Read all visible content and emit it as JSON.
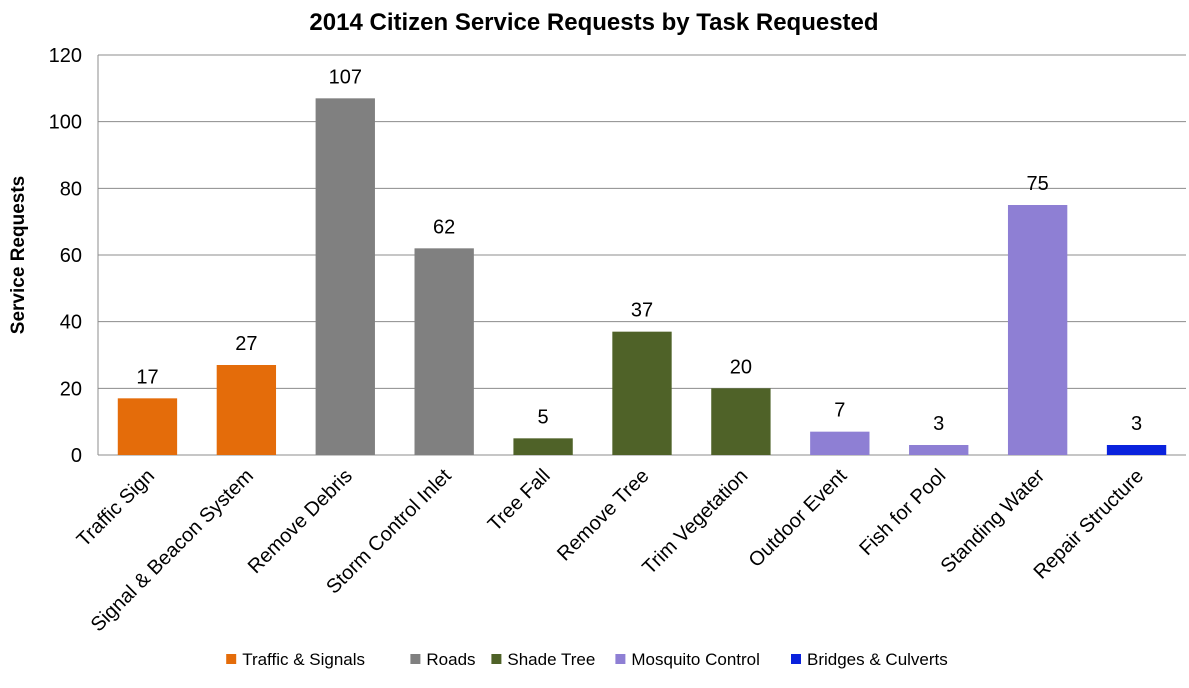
{
  "chart_data": {
    "type": "bar",
    "title": "2014 Citizen Service Requests by Task Requested",
    "xlabel": "",
    "ylabel": "Service Requests",
    "ylim": [
      0,
      120
    ],
    "yticks": [
      0,
      20,
      40,
      60,
      80,
      100,
      120
    ],
    "grid": true,
    "legend_position": "bottom",
    "categories": [
      "Traffic Sign",
      "Signal & Beacon System",
      "Remove Debris",
      "Storm Control Inlet",
      "Tree Fall",
      "Remove Tree",
      "Trim Vegetation",
      "Outdoor Event",
      "Fish for Pool",
      "Standing Water",
      "Repair Structure"
    ],
    "values": [
      17,
      27,
      107,
      62,
      5,
      37,
      20,
      7,
      3,
      75,
      3
    ],
    "bar_groups": [
      "Traffic & Signals",
      "Traffic & Signals",
      "Roads",
      "Roads",
      "Shade Tree",
      "Shade Tree",
      "Shade Tree",
      "Mosquito Control",
      "Mosquito Control",
      "Mosquito Control",
      "Bridges & Culverts"
    ],
    "legend": [
      {
        "name": "Traffic & Signals",
        "color": "#E46C0A"
      },
      {
        "name": "Roads",
        "color": "#808080"
      },
      {
        "name": "Shade Tree",
        "color": "#4F6228"
      },
      {
        "name": "Mosquito Control",
        "color": "#8E7FD4"
      },
      {
        "name": "Bridges & Culverts",
        "color": "#0A22DD"
      }
    ]
  }
}
